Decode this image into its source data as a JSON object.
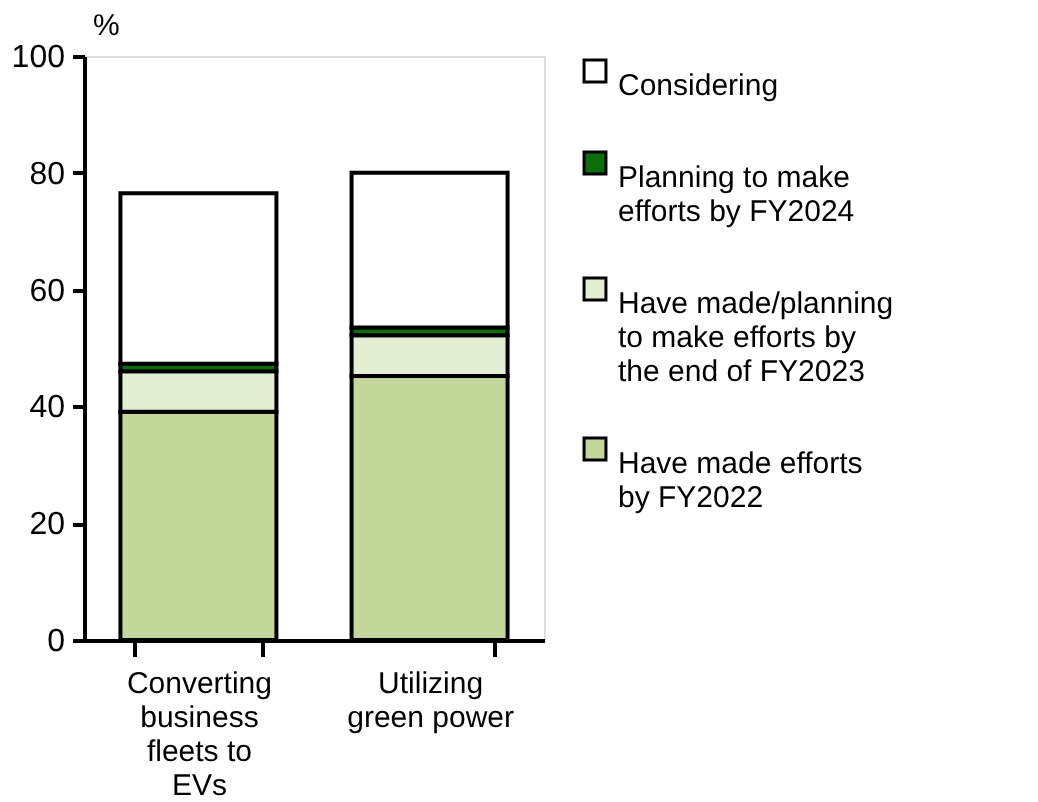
{
  "chart_data": {
    "type": "bar",
    "stacked": true,
    "ylabel": "%",
    "categories": [
      "Converting business fleets to EVs",
      "Utilizing green power"
    ],
    "series": [
      {
        "name": "Have made efforts by FY2022",
        "color": "#c4d79b",
        "values": [
          39.1,
          45.2
        ]
      },
      {
        "name": "Have made/planning to make efforts by the end of FY2023",
        "color": "#e3eed3",
        "values": [
          6.9,
          7.0
        ]
      },
      {
        "name": "Planning to make efforts by FY2024",
        "color": "#0b6e0b",
        "values": [
          1.3,
          1.3
        ]
      },
      {
        "name": "Considering",
        "color": "#ffffff",
        "values": [
          29.2,
          26.5
        ]
      }
    ],
    "ylim": [
      0,
      100
    ],
    "yticks": [
      0,
      20,
      40,
      60,
      80,
      100
    ],
    "grid": false,
    "legend": "right"
  }
}
